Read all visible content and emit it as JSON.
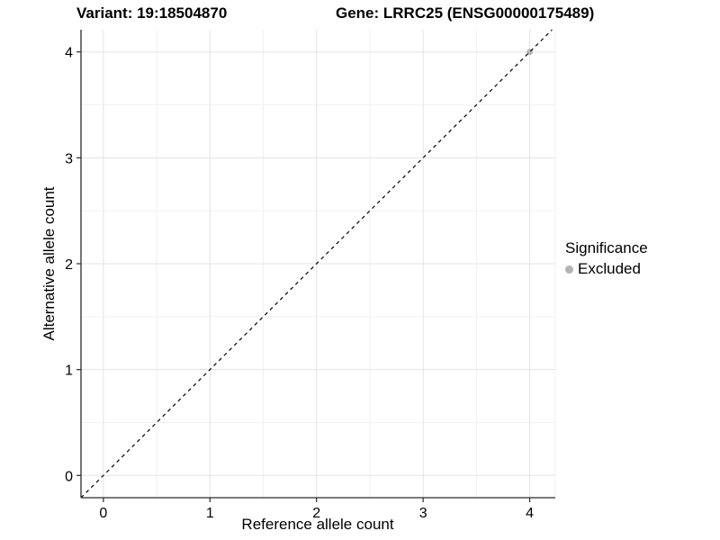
{
  "titles": {
    "variant": "Variant: 19:18504870",
    "gene": "Gene: LRRC25 (ENSG00000175489)"
  },
  "legend": {
    "title": "Significance",
    "items": [
      {
        "label": "Excluded",
        "color": "#b3b3b3",
        "marker": "dot-icon"
      }
    ]
  },
  "chart_data": {
    "type": "scatter",
    "xlabel": "Reference allele count",
    "ylabel": "Alternative allele count",
    "xlim": [
      -0.21,
      4.24
    ],
    "ylim": [
      -0.21,
      4.21
    ],
    "x_ticks": [
      0,
      1,
      2,
      3,
      4
    ],
    "y_ticks": [
      0,
      1,
      2,
      3,
      4
    ],
    "x_minor_ticks": [
      0.5,
      1.5,
      2.5,
      3.5
    ],
    "y_minor_ticks": [
      0.5,
      1.5,
      2.5,
      3.5
    ],
    "grid": true,
    "legend_position": "right",
    "reference_line": {
      "kind": "identity",
      "slope": 1,
      "intercept": 0,
      "style": "dashed",
      "color": "#000000"
    },
    "series": [
      {
        "name": "Excluded",
        "color": "#b3b3b3",
        "points": [
          [
            4,
            4
          ]
        ]
      }
    ]
  },
  "style": {
    "axis_color": "#2b2b2b",
    "tick_color": "#2b2b2b",
    "major_grid_color": "#e3e3e3",
    "minor_grid_color": "#f1f1f1",
    "text_color": "#000000",
    "background": "#ffffff"
  }
}
